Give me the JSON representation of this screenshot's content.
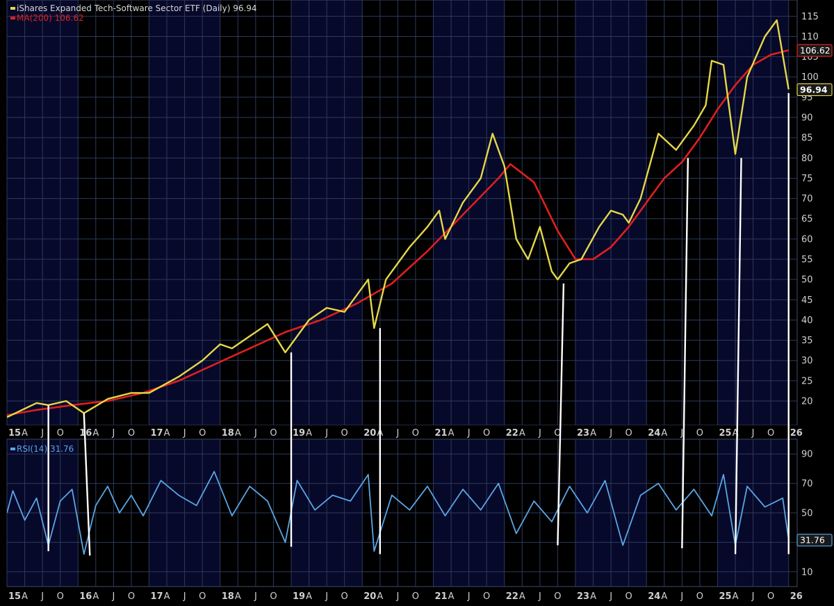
{
  "chart_data": [
    {
      "panel": "price",
      "type": "line",
      "scale": "linear",
      "ylim": [
        14,
        119
      ],
      "y_ticks": [
        20,
        25,
        30,
        35,
        40,
        45,
        50,
        55,
        60,
        65,
        70,
        75,
        80,
        85,
        90,
        95,
        100,
        105,
        110,
        115
      ],
      "grid": true,
      "legend_placement": "top-left",
      "x_tick_labels": [
        "15",
        "A",
        "J",
        "O",
        "16",
        "A",
        "J",
        "O",
        "17",
        "A",
        "J",
        "O",
        "18",
        "A",
        "J",
        "O",
        "19",
        "A",
        "J",
        "O",
        "20",
        "A",
        "J",
        "O",
        "21",
        "A",
        "J",
        "O",
        "22",
        "A",
        "J",
        "O",
        "23",
        "A",
        "J",
        "O",
        "24",
        "A",
        "J",
        "O",
        "25",
        "A",
        "J",
        "O",
        "26"
      ],
      "series": [
        {
          "name": "iShares Expanded Tech-Software Sector ETF (Daily)",
          "legend_text": "iShares Expanded Tech-Software Sector ETF (Daily) 96.94",
          "color": "#e6d84a",
          "last_value_label": "96.94",
          "x": [
            "2015-01",
            "2015-06",
            "2015-08",
            "2015-11",
            "2016-02",
            "2016-06",
            "2016-10",
            "2017-01",
            "2017-06",
            "2017-10",
            "2018-01",
            "2018-03",
            "2018-06",
            "2018-09",
            "2018-12",
            "2019-04",
            "2019-07",
            "2019-10",
            "2020-02",
            "2020-03",
            "2020-05",
            "2020-09",
            "2020-12",
            "2021-02",
            "2021-03",
            "2021-06",
            "2021-09",
            "2021-11",
            "2022-01",
            "2022-03",
            "2022-05",
            "2022-07",
            "2022-09",
            "2022-10",
            "2022-12",
            "2023-02",
            "2023-05",
            "2023-07",
            "2023-09",
            "2023-10",
            "2023-12",
            "2024-03",
            "2024-06",
            "2024-09",
            "2024-11",
            "2024-12",
            "2025-02",
            "2025-04",
            "2025-06",
            "2025-09",
            "2025-11",
            "2026-01"
          ],
          "y": [
            16,
            19.5,
            19,
            20,
            17,
            20.5,
            22,
            22,
            26,
            30,
            34,
            33,
            36,
            39,
            32,
            40,
            43,
            42,
            50,
            38,
            50,
            58,
            63,
            67,
            60,
            69,
            75,
            86,
            78,
            60,
            55,
            63,
            52,
            50,
            54,
            55,
            63,
            67,
            66,
            64,
            70,
            86,
            82,
            88,
            93,
            104,
            103,
            81,
            100,
            110,
            114,
            96.94
          ]
        },
        {
          "name": "MA(200)",
          "legend_text": "MA(200) 106.62",
          "color": "#e0201e",
          "last_value_label": "106.62",
          "x": [
            "2015-01",
            "2015-06",
            "2015-12",
            "2016-06",
            "2016-12",
            "2017-06",
            "2017-12",
            "2018-06",
            "2018-12",
            "2019-06",
            "2019-12",
            "2020-06",
            "2020-12",
            "2021-06",
            "2021-12",
            "2022-02",
            "2022-06",
            "2022-10",
            "2023-01",
            "2023-04",
            "2023-07",
            "2023-10",
            "2024-01",
            "2024-04",
            "2024-07",
            "2024-10",
            "2025-01",
            "2025-04",
            "2025-07",
            "2025-10",
            "2026-01"
          ],
          "y": [
            16.5,
            17.8,
            19,
            20,
            22,
            25,
            29,
            33,
            37,
            40,
            44,
            49,
            57,
            66,
            75,
            78.5,
            74,
            62,
            55,
            55,
            58,
            63,
            69,
            75,
            79,
            85,
            92,
            98,
            103,
            105.5,
            106.62
          ]
        }
      ]
    },
    {
      "panel": "rsi",
      "type": "line",
      "scale": "linear",
      "ylim": [
        0,
        100
      ],
      "y_ticks": [
        10,
        30,
        50,
        70,
        90
      ],
      "grid": true,
      "legend_placement": "top-left",
      "x_tick_labels": [
        "15",
        "A",
        "J",
        "O",
        "16",
        "A",
        "J",
        "O",
        "17",
        "A",
        "J",
        "O",
        "18",
        "A",
        "J",
        "O",
        "19",
        "A",
        "J",
        "O",
        "20",
        "A",
        "J",
        "O",
        "21",
        "A",
        "J",
        "O",
        "22",
        "A",
        "J",
        "O",
        "23",
        "A",
        "J",
        "O",
        "24",
        "A",
        "J",
        "O",
        "25",
        "A",
        "J",
        "O",
        "26"
      ],
      "series": [
        {
          "name": "RSI(14)",
          "legend_text": "RSI(14) 31.76",
          "color": "#5aa6e6",
          "last_value_label": "31.76",
          "x": [
            "2015-01",
            "2015-02",
            "2015-04",
            "2015-06",
            "2015-08",
            "2015-10",
            "2015-12",
            "2016-02",
            "2016-04",
            "2016-06",
            "2016-08",
            "2016-10",
            "2016-12",
            "2017-03",
            "2017-06",
            "2017-09",
            "2017-12",
            "2018-03",
            "2018-06",
            "2018-09",
            "2018-12",
            "2019-02",
            "2019-05",
            "2019-08",
            "2019-11",
            "2020-02",
            "2020-03",
            "2020-06",
            "2020-09",
            "2020-12",
            "2021-03",
            "2021-06",
            "2021-09",
            "2021-12",
            "2022-03",
            "2022-06",
            "2022-09",
            "2022-12",
            "2023-03",
            "2023-06",
            "2023-09",
            "2023-12",
            "2024-03",
            "2024-06",
            "2024-09",
            "2024-12",
            "2025-02",
            "2025-04",
            "2025-06",
            "2025-09",
            "2025-12",
            "2026-01"
          ],
          "y": [
            50,
            65,
            45,
            60,
            28,
            58,
            66,
            22,
            55,
            68,
            50,
            62,
            48,
            72,
            62,
            55,
            78,
            48,
            68,
            58,
            30,
            72,
            52,
            62,
            58,
            76,
            24,
            62,
            52,
            68,
            48,
            66,
            52,
            70,
            36,
            58,
            44,
            68,
            50,
            72,
            28,
            62,
            70,
            52,
            66,
            48,
            76,
            28,
            68,
            54,
            60,
            31.76
          ]
        }
      ]
    }
  ]
}
